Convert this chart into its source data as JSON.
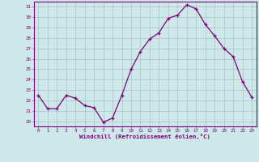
{
  "x": [
    0,
    1,
    2,
    3,
    4,
    5,
    6,
    7,
    8,
    9,
    10,
    11,
    12,
    13,
    14,
    15,
    16,
    17,
    18,
    19,
    20,
    21,
    22,
    23
  ],
  "y": [
    22.5,
    21.2,
    21.2,
    22.5,
    22.2,
    21.5,
    21.3,
    19.9,
    20.3,
    22.5,
    25.0,
    26.7,
    27.9,
    28.5,
    29.9,
    30.2,
    31.2,
    30.8,
    29.3,
    28.2,
    27.0,
    26.2,
    23.8,
    22.3
  ],
  "line_color": "#800080",
  "marker": "+",
  "marker_color": "#800080",
  "bg_color": "#cce8e8",
  "grid_color": "#b0c8c8",
  "xlabel": "Windchill (Refroidissement éolien,°C)",
  "xlabel_color": "#800080",
  "tick_color": "#800080",
  "axis_color": "#800080",
  "ylim": [
    19.5,
    31.5
  ],
  "yticks": [
    20,
    21,
    22,
    23,
    24,
    25,
    26,
    27,
    28,
    29,
    30,
    31
  ],
  "xlim": [
    -0.5,
    23.5
  ],
  "xticks": [
    0,
    1,
    2,
    3,
    4,
    5,
    6,
    7,
    8,
    9,
    10,
    11,
    12,
    13,
    14,
    15,
    16,
    17,
    18,
    19,
    20,
    21,
    22,
    23
  ]
}
